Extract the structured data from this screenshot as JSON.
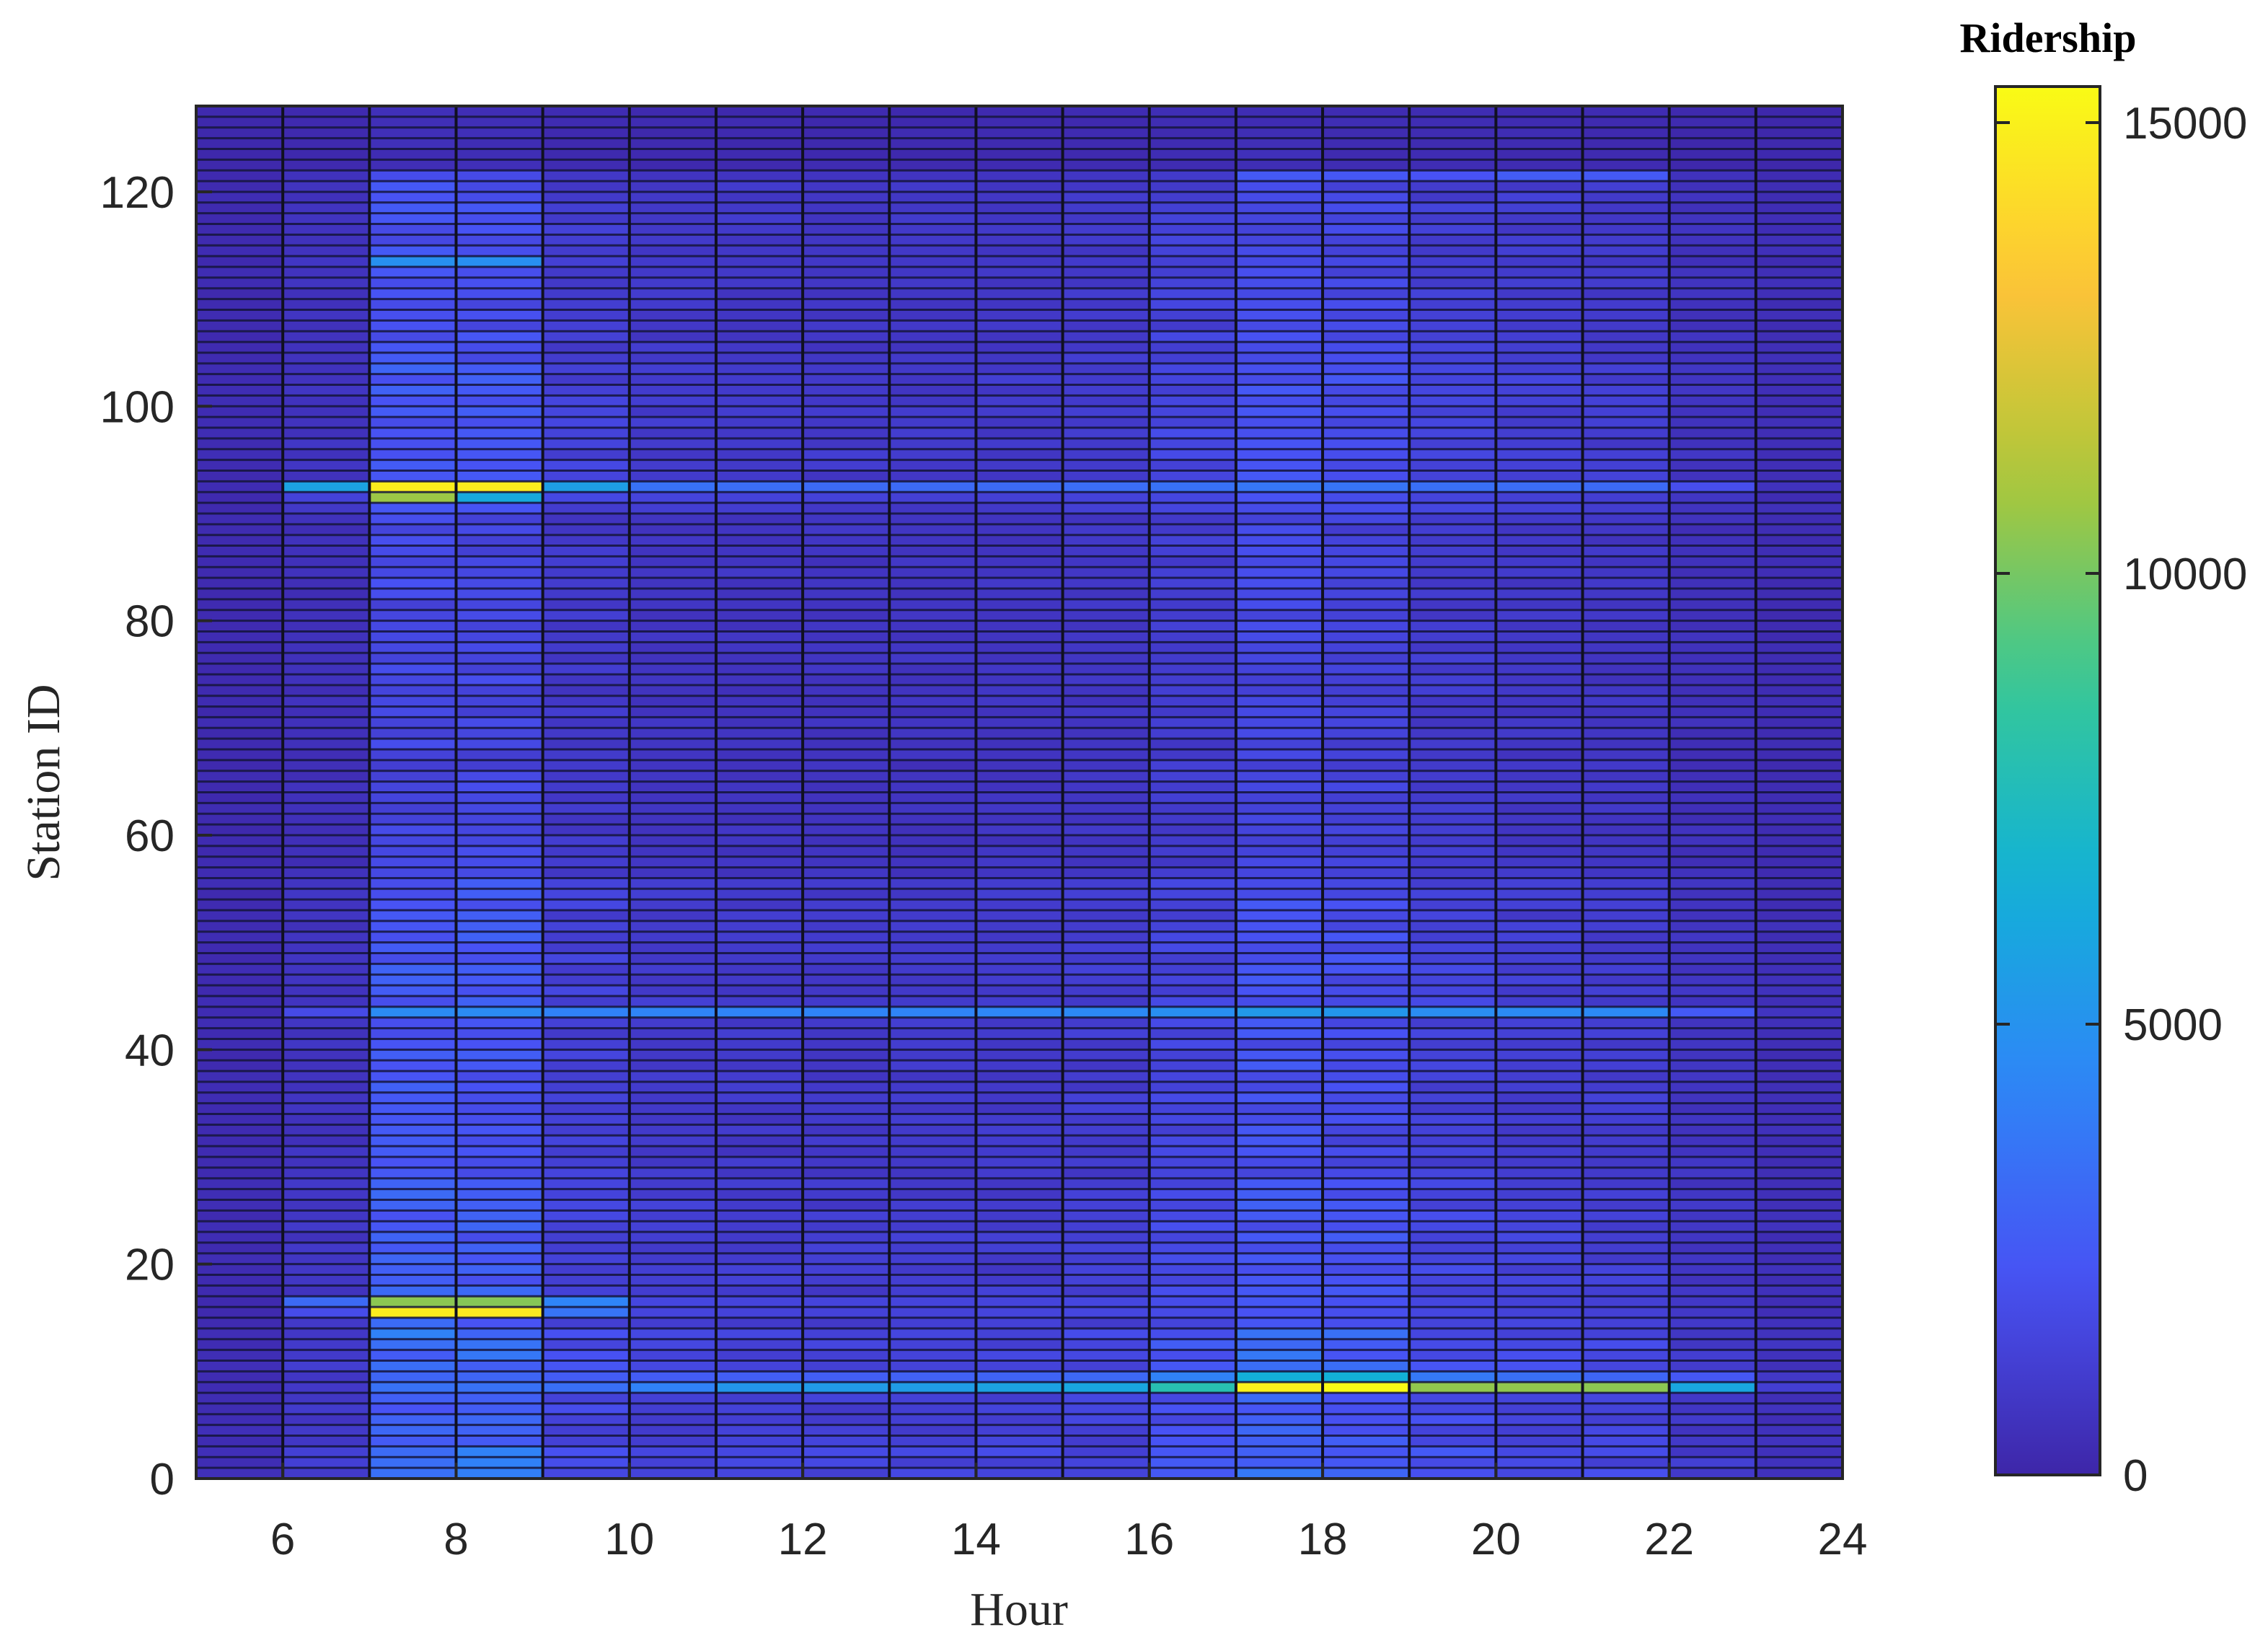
{
  "chart_data": {
    "type": "heatmap",
    "title": "",
    "xlabel": "Hour",
    "ylabel": "Station ID",
    "colorbar_label": "Ridership",
    "colormap": "parula",
    "xlim": [
      5,
      24
    ],
    "ylim": [
      0,
      128
    ],
    "x_ticks": [
      6,
      8,
      10,
      12,
      14,
      16,
      18,
      20,
      22,
      24
    ],
    "y_ticks": [
      0,
      20,
      40,
      60,
      80,
      100,
      120
    ],
    "color_range": [
      0,
      15400
    ],
    "colorbar_ticks": [
      0,
      5000,
      10000,
      15000
    ],
    "hours": [
      5,
      6,
      7,
      8,
      9,
      10,
      11,
      12,
      13,
      14,
      15,
      16,
      17,
      18,
      19,
      20,
      21,
      22,
      23
    ],
    "station_ids": [
      1,
      2,
      3,
      4,
      5,
      6,
      7,
      8,
      9,
      10,
      11,
      12,
      13,
      14,
      15,
      16,
      17,
      18,
      19,
      20,
      21,
      22,
      23,
      24,
      25,
      26,
      27,
      28,
      29,
      30,
      31,
      32,
      33,
      34,
      35,
      36,
      37,
      38,
      39,
      40,
      41,
      42,
      43,
      44,
      45,
      46,
      47,
      48,
      49,
      50,
      51,
      52,
      53,
      54,
      55,
      56,
      57,
      58,
      59,
      60,
      61,
      62,
      63,
      64,
      65,
      66,
      67,
      68,
      69,
      70,
      71,
      72,
      73,
      74,
      75,
      76,
      77,
      78,
      79,
      80,
      81,
      82,
      83,
      84,
      85,
      86,
      87,
      88,
      89,
      90,
      91,
      92,
      93,
      94,
      95,
      96,
      97,
      98,
      99,
      100,
      101,
      102,
      103,
      104,
      105,
      106,
      107,
      108,
      109,
      110,
      111,
      112,
      113,
      114,
      115,
      116,
      117,
      118,
      119,
      120,
      121,
      122,
      123,
      124,
      125,
      126,
      127,
      128
    ],
    "hourly_level": [
      200,
      600,
      2200,
      2100,
      1200,
      900,
      850,
      850,
      850,
      900,
      1000,
      1400,
      2000,
      1800,
      1300,
      1100,
      1000,
      600,
      350
    ],
    "station_level_low": 150,
    "station_level_high": [
      {
        "from": 1,
        "to": 3,
        "level": 1.6
      },
      {
        "from": 4,
        "to": 8,
        "level": 1.3
      },
      {
        "from": 10,
        "to": 14,
        "level": 1.5
      },
      {
        "from": 15,
        "to": 18,
        "level": 1.2
      },
      {
        "from": 19,
        "to": 28,
        "level": 1.15
      },
      {
        "from": 29,
        "to": 42,
        "level": 1.0
      },
      {
        "from": 43,
        "to": 56,
        "level": 1.05
      },
      {
        "from": 57,
        "to": 75,
        "level": 0.7
      },
      {
        "from": 76,
        "to": 90,
        "level": 0.75
      },
      {
        "from": 91,
        "to": 104,
        "level": 1.05
      },
      {
        "from": 105,
        "to": 122,
        "level": 0.9
      },
      {
        "from": 123,
        "to": 128,
        "level": 0.15
      }
    ],
    "station_row_overrides": [
      {
        "station": 9,
        "values": [
          300,
          900,
          3500,
          3500,
          3400,
          4200,
          5200,
          5400,
          5500,
          5800,
          6000,
          7900,
          15000,
          15400,
          10500,
          10500,
          10400,
          6000,
          1200
        ]
      },
      {
        "station": 10,
        "values": [
          300,
          800,
          3000,
          3000,
          2600,
          2600,
          2700,
          2700,
          2800,
          2900,
          3100,
          4200,
          6500,
          6600,
          3800,
          3400,
          3000,
          2400,
          900
        ]
      },
      {
        "station": 16,
        "values": [
          200,
          1900,
          14800,
          14700,
          3600,
          1500,
          1400,
          1400,
          1400,
          1500,
          1600,
          1800,
          2200,
          2000,
          1600,
          1400,
          1300,
          900,
          400
        ]
      },
      {
        "station": 17,
        "values": [
          200,
          3200,
          10400,
          10300,
          4300,
          1600,
          1500,
          1500,
          1500,
          1500,
          1600,
          1900,
          2400,
          2100,
          1600,
          1400,
          1300,
          900,
          400
        ]
      },
      {
        "station": 44,
        "values": [
          300,
          1800,
          4600,
          4600,
          4200,
          4300,
          4300,
          4300,
          4300,
          4400,
          4500,
          4800,
          5300,
          5200,
          4700,
          4600,
          4500,
          2500,
          700
        ]
      },
      {
        "station": 92,
        "values": [
          200,
          1400,
          10700,
          6200,
          1700,
          1500,
          1400,
          1400,
          1300,
          1300,
          1400,
          1600,
          2200,
          1900,
          1500,
          1300,
          1200,
          800,
          300
        ]
      },
      {
        "station": 93,
        "values": [
          300,
          5800,
          14900,
          14800,
          5600,
          3500,
          3300,
          3200,
          3200,
          3200,
          3300,
          3500,
          3700,
          3600,
          3400,
          3300,
          3200,
          2000,
          600
        ]
      },
      {
        "station": 114,
        "values": [
          200,
          800,
          4900,
          4800,
          1300,
          1000,
          900,
          900,
          900,
          900,
          1000,
          1300,
          1800,
          1700,
          1200,
          1000,
          900,
          500,
          300
        ]
      },
      {
        "station": 122,
        "values": [
          200,
          600,
          1900,
          1800,
          900,
          700,
          700,
          700,
          700,
          700,
          800,
          1000,
          2500,
          2400,
          2200,
          2600,
          2500,
          600,
          300
        ]
      }
    ]
  }
}
